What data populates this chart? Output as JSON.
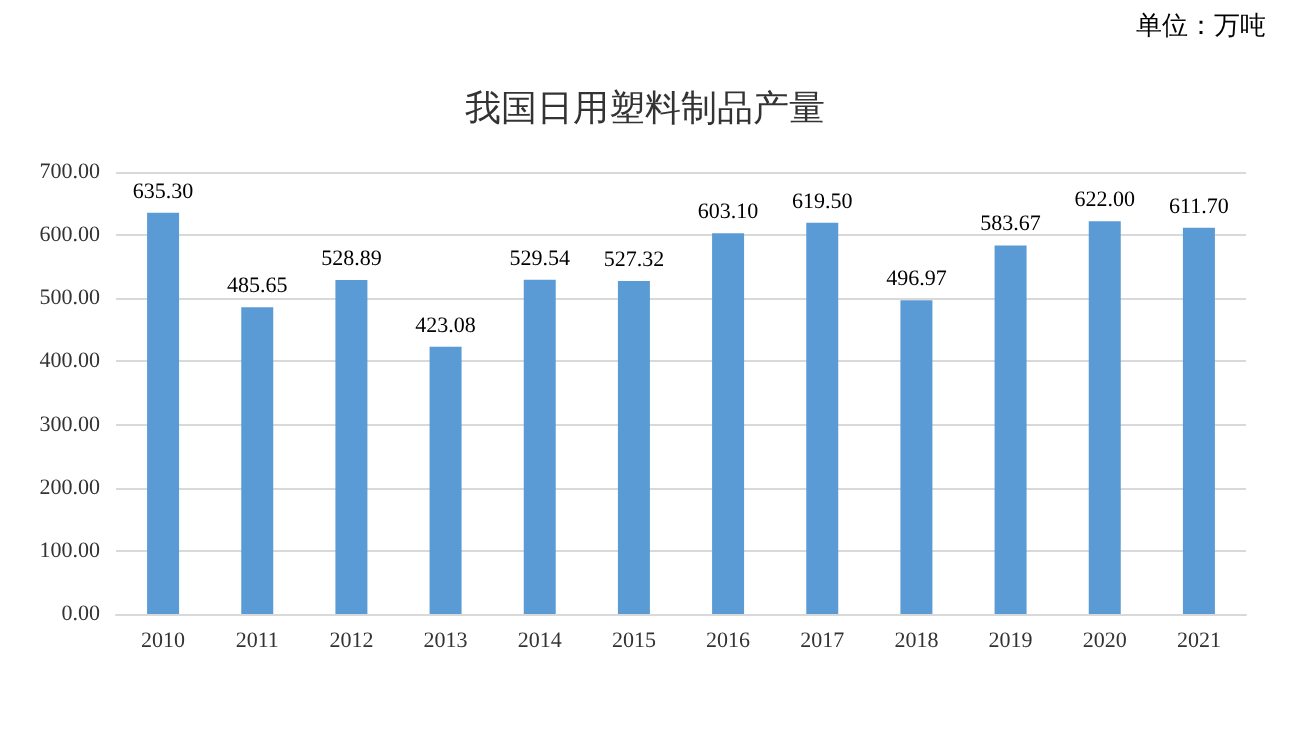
{
  "chart_data": {
    "type": "bar",
    "title": "我国日用塑料制品产量",
    "annotations": [
      "单位：万吨"
    ],
    "categories": [
      "2010",
      "2011",
      "2012",
      "2013",
      "2014",
      "2015",
      "2016",
      "2017",
      "2018",
      "2019",
      "2020",
      "2021"
    ],
    "values": [
      635.3,
      485.65,
      528.89,
      423.08,
      529.54,
      527.32,
      603.1,
      619.5,
      496.97,
      583.67,
      622,
      611.7
    ],
    "value_labels": [
      "635.30",
      "485.65",
      "528.89",
      "423.08",
      "529.54",
      "527.32",
      "603.10",
      "619.50",
      "496.97",
      "583.67",
      "622.00",
      "611.70"
    ],
    "color": "#5b9bd5",
    "ylim": [
      0,
      700
    ],
    "yticks": [
      {
        "value": 0,
        "label": "0.00"
      },
      {
        "value": 100,
        "label": "100.00"
      },
      {
        "value": 200,
        "label": "200.00"
      },
      {
        "value": 300,
        "label": "300.00"
      },
      {
        "value": 400,
        "label": "400.00"
      },
      {
        "value": 500,
        "label": "500.00"
      },
      {
        "value": 600,
        "label": "600.00"
      },
      {
        "value": 700,
        "label": "700.00"
      }
    ],
    "grid": true
  }
}
